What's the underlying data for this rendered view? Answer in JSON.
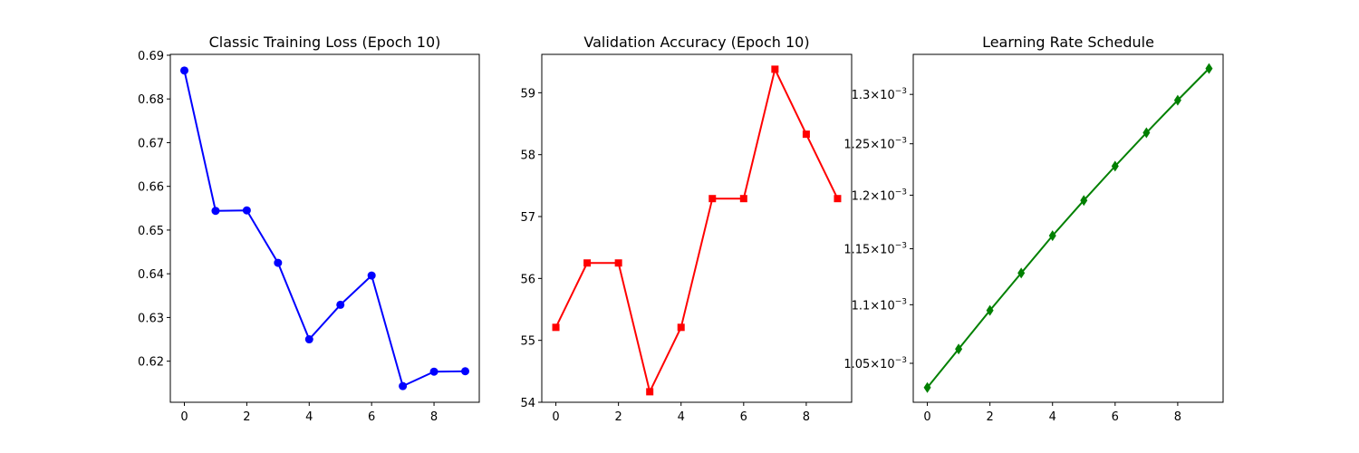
{
  "chart_data": [
    {
      "type": "line",
      "title": "Classic Training Loss (Epoch 10)",
      "xlabel": "",
      "ylabel": "",
      "x": [
        0,
        1,
        2,
        3,
        4,
        5,
        6,
        7,
        8,
        9
      ],
      "series": [
        {
          "values": [
            0.6865,
            0.6544,
            0.6545,
            0.6425,
            0.625,
            0.6329,
            0.6396,
            0.6143,
            0.6176,
            0.6177
          ]
        }
      ],
      "xlim": [
        -0.45,
        9.45
      ],
      "ylim": [
        0.6106,
        0.6902
      ],
      "xticks": [
        0,
        2,
        4,
        6,
        8
      ],
      "xtick_labels": [
        "0",
        "2",
        "4",
        "6",
        "8"
      ],
      "yticks": [
        0.62,
        0.63,
        0.64,
        0.65,
        0.66,
        0.67,
        0.68,
        0.69
      ],
      "ytick_labels": [
        "0.62",
        "0.63",
        "0.64",
        "0.65",
        "0.66",
        "0.67",
        "0.68",
        "0.69"
      ],
      "color": "#0000ff",
      "marker": "circle",
      "grid": false,
      "yscale": "linear"
    },
    {
      "type": "line",
      "title": "Validation Accuracy (Epoch 10)",
      "xlabel": "",
      "ylabel": "",
      "x": [
        0,
        1,
        2,
        3,
        4,
        5,
        6,
        7,
        8,
        9
      ],
      "series": [
        {
          "values": [
            55.21,
            56.25,
            56.25,
            54.17,
            55.21,
            57.29,
            57.29,
            59.38,
            58.33,
            57.29
          ]
        }
      ],
      "xlim": [
        -0.45,
        9.45
      ],
      "ylim": [
        54.0,
        59.62
      ],
      "xticks": [
        0,
        2,
        4,
        6,
        8
      ],
      "xtick_labels": [
        "0",
        "2",
        "4",
        "6",
        "8"
      ],
      "yticks": [
        54,
        55,
        56,
        57,
        58,
        59
      ],
      "ytick_labels": [
        "54",
        "55",
        "56",
        "57",
        "58",
        "59"
      ],
      "color": "#ff0000",
      "marker": "square",
      "grid": false,
      "yscale": "linear"
    },
    {
      "type": "line",
      "title": "Learning Rate Schedule",
      "xlabel": "",
      "ylabel": "",
      "x": [
        0,
        1,
        2,
        3,
        4,
        5,
        6,
        7,
        8,
        9
      ],
      "series": [
        {
          "values": [
            0.00103,
            0.001062,
            0.001095,
            0.001128,
            0.001162,
            0.001195,
            0.001228,
            0.001261,
            0.001294,
            0.001327
          ]
        }
      ],
      "xlim": [
        -0.45,
        9.45
      ],
      "ylim": [
        0.001018,
        0.001342
      ],
      "xticks": [
        0,
        2,
        4,
        6,
        8
      ],
      "xtick_labels": [
        "0",
        "2",
        "4",
        "6",
        "8"
      ],
      "yticks": [
        0.00105,
        0.0011,
        0.00115,
        0.0012,
        0.00125,
        0.0013
      ],
      "ytick_labels": [
        {
          "mantissa": "1.05",
          "times": "×",
          "base": "10",
          "exp": "−3"
        },
        {
          "mantissa": "1.1",
          "times": "×",
          "base": "10",
          "exp": "−3"
        },
        {
          "mantissa": "1.15",
          "times": "×",
          "base": "10",
          "exp": "−3"
        },
        {
          "mantissa": "1.2",
          "times": "×",
          "base": "10",
          "exp": "−3"
        },
        {
          "mantissa": "1.25",
          "times": "×",
          "base": "10",
          "exp": "−3"
        },
        {
          "mantissa": "1.3",
          "times": "×",
          "base": "10",
          "exp": "−3"
        }
      ],
      "color": "#008000",
      "marker": "diamond",
      "grid": false,
      "yscale": "log"
    }
  ]
}
